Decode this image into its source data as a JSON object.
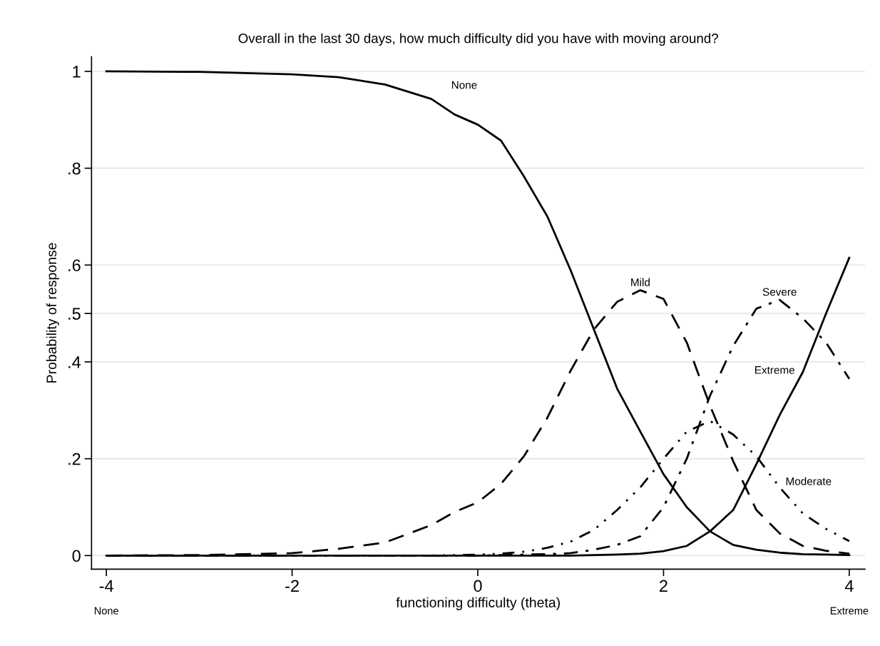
{
  "chart_data": {
    "type": "line",
    "title": "Overall in the last 30 days, how much difficulty did you have with moving around?",
    "xlabel": "functioning difficulty (theta)",
    "ylabel": "Probability of response",
    "x": [
      -4,
      -3,
      -2,
      -1.5,
      -1,
      -0.5,
      -0.25,
      0,
      0.25,
      0.5,
      0.75,
      1,
      1.25,
      1.5,
      1.75,
      2,
      2.25,
      2.5,
      2.75,
      3,
      3.25,
      3.5,
      3.75,
      4
    ],
    "series": [
      {
        "name": "None",
        "color": "#000000",
        "line_style": "solid",
        "values": [
          1.0,
          0.999,
          0.994,
          0.988,
          0.973,
          0.943,
          0.911,
          0.89,
          0.857,
          0.782,
          0.7,
          0.589,
          0.467,
          0.345,
          0.256,
          0.168,
          0.1,
          0.05,
          0.022,
          0.012,
          0.006,
          0.003,
          0.002,
          0.001
        ]
      },
      {
        "name": "Mild",
        "color": "#000000",
        "line_style": "dashed",
        "values": [
          0,
          0.001,
          0.005,
          0.014,
          0.027,
          0.063,
          0.09,
          0.11,
          0.148,
          0.206,
          0.285,
          0.382,
          0.467,
          0.524,
          0.548,
          0.53,
          0.44,
          0.31,
          0.195,
          0.094,
          0.046,
          0.02,
          0.01,
          0.004
        ]
      },
      {
        "name": "Moderate",
        "color": "#000000",
        "line_style": "dotted",
        "values": [
          0,
          0,
          0,
          0,
          0,
          0,
          0.001,
          0.002,
          0.004,
          0.008,
          0.016,
          0.029,
          0.053,
          0.094,
          0.141,
          0.2,
          0.256,
          0.278,
          0.25,
          0.205,
          0.141,
          0.087,
          0.055,
          0.03
        ]
      },
      {
        "name": "Severe",
        "color": "#000000",
        "line_style": "dashdot",
        "values": [
          0,
          0,
          0,
          0,
          0,
          0,
          0,
          0,
          0.001,
          0.002,
          0.003,
          0.005,
          0.012,
          0.022,
          0.04,
          0.1,
          0.2,
          0.33,
          0.433,
          0.51,
          0.528,
          0.49,
          0.44,
          0.365
        ]
      },
      {
        "name": "Extreme",
        "color": "#000000",
        "line_style": "solid",
        "values": [
          0,
          0,
          0,
          0,
          0,
          0,
          0,
          0,
          0,
          0,
          0,
          0,
          0.001,
          0.002,
          0.004,
          0.009,
          0.02,
          0.05,
          0.094,
          0.189,
          0.29,
          0.379,
          0.5,
          0.615
        ]
      }
    ],
    "xlim": [
      -4.16,
      4.17
    ],
    "ylim": [
      -0.028,
      1.03
    ],
    "xticks": [
      {
        "value": -4,
        "label": "-4"
      },
      {
        "value": -2,
        "label": "-2"
      },
      0,
      2,
      4
    ],
    "yticks": [
      0,
      {
        "value": 0.2,
        "label": ".2"
      },
      {
        "value": 0.4,
        "label": ".4"
      },
      {
        "value": 0.5,
        "label": ".5"
      },
      {
        "value": 0.6,
        "label": ".6"
      },
      {
        "value": 0.8,
        "label": ".8"
      },
      1
    ],
    "grid": "y",
    "marker": "none",
    "annotations": [
      "None",
      "Extreme"
    ]
  }
}
